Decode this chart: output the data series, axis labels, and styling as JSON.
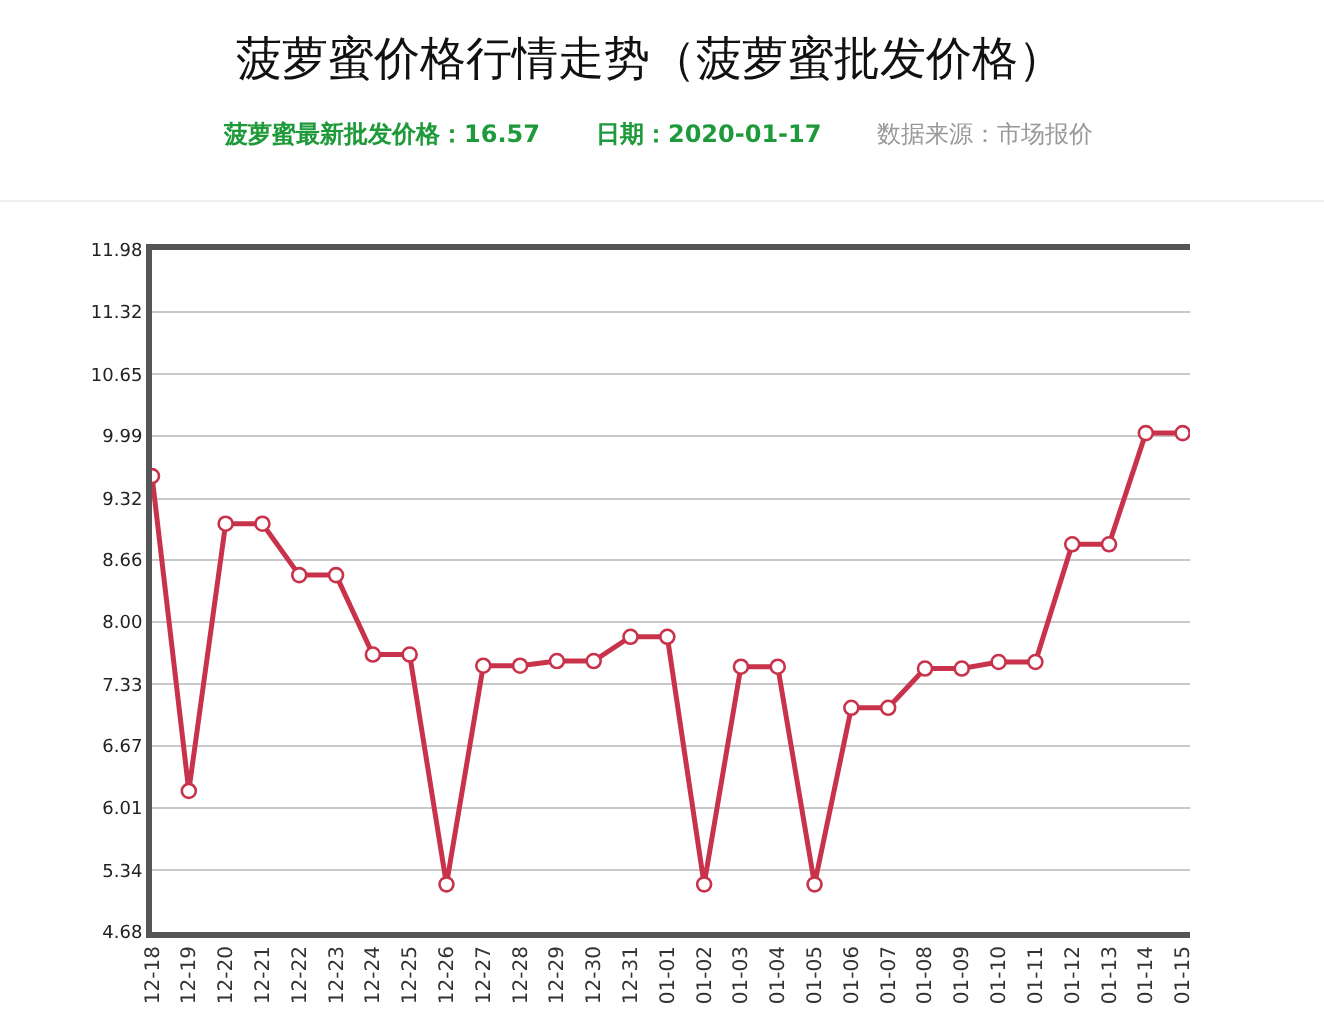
{
  "chart_data": {
    "type": "line",
    "title": "菠萝蜜价格行情走势（菠萝蜜批发价格）",
    "subtitle": "菠萝蜜最新批发价格：16.57",
    "annotations": [
      "日期：2020-01-17",
      "数据来源：市场报价"
    ],
    "categories": [
      "12-18",
      "12-19",
      "12-20",
      "12-21",
      "12-22",
      "12-23",
      "12-24",
      "12-25",
      "12-26",
      "12-27",
      "12-28",
      "12-29",
      "12-30",
      "12-31",
      "01-01",
      "01-02",
      "01-03",
      "01-04",
      "01-05",
      "01-06",
      "01-07",
      "01-08",
      "01-09",
      "01-10",
      "01-11",
      "01-12",
      "01-13",
      "01-14",
      "01-15"
    ],
    "series": [
      {
        "color": "#c8334b",
        "values": [
          9.56,
          6.19,
          9.05,
          9.05,
          8.5,
          8.5,
          7.65,
          7.65,
          5.19,
          7.53,
          7.53,
          7.58,
          7.58,
          7.84,
          7.84,
          5.19,
          7.52,
          7.52,
          5.19,
          7.08,
          7.08,
          7.5,
          7.5,
          7.57,
          7.57,
          8.83,
          8.83,
          10.02,
          10.02
        ]
      }
    ],
    "ylim": [
      4.68,
      11.98
    ],
    "yticks": [
      4.68,
      5.34,
      6.01,
      6.67,
      7.33,
      {
        "value": 8,
        "label": "8.00"
      },
      8.66,
      9.32,
      9.99,
      10.65,
      11.32,
      11.98
    ],
    "grid": "y",
    "marker": "circle",
    "line_style": "solid"
  }
}
